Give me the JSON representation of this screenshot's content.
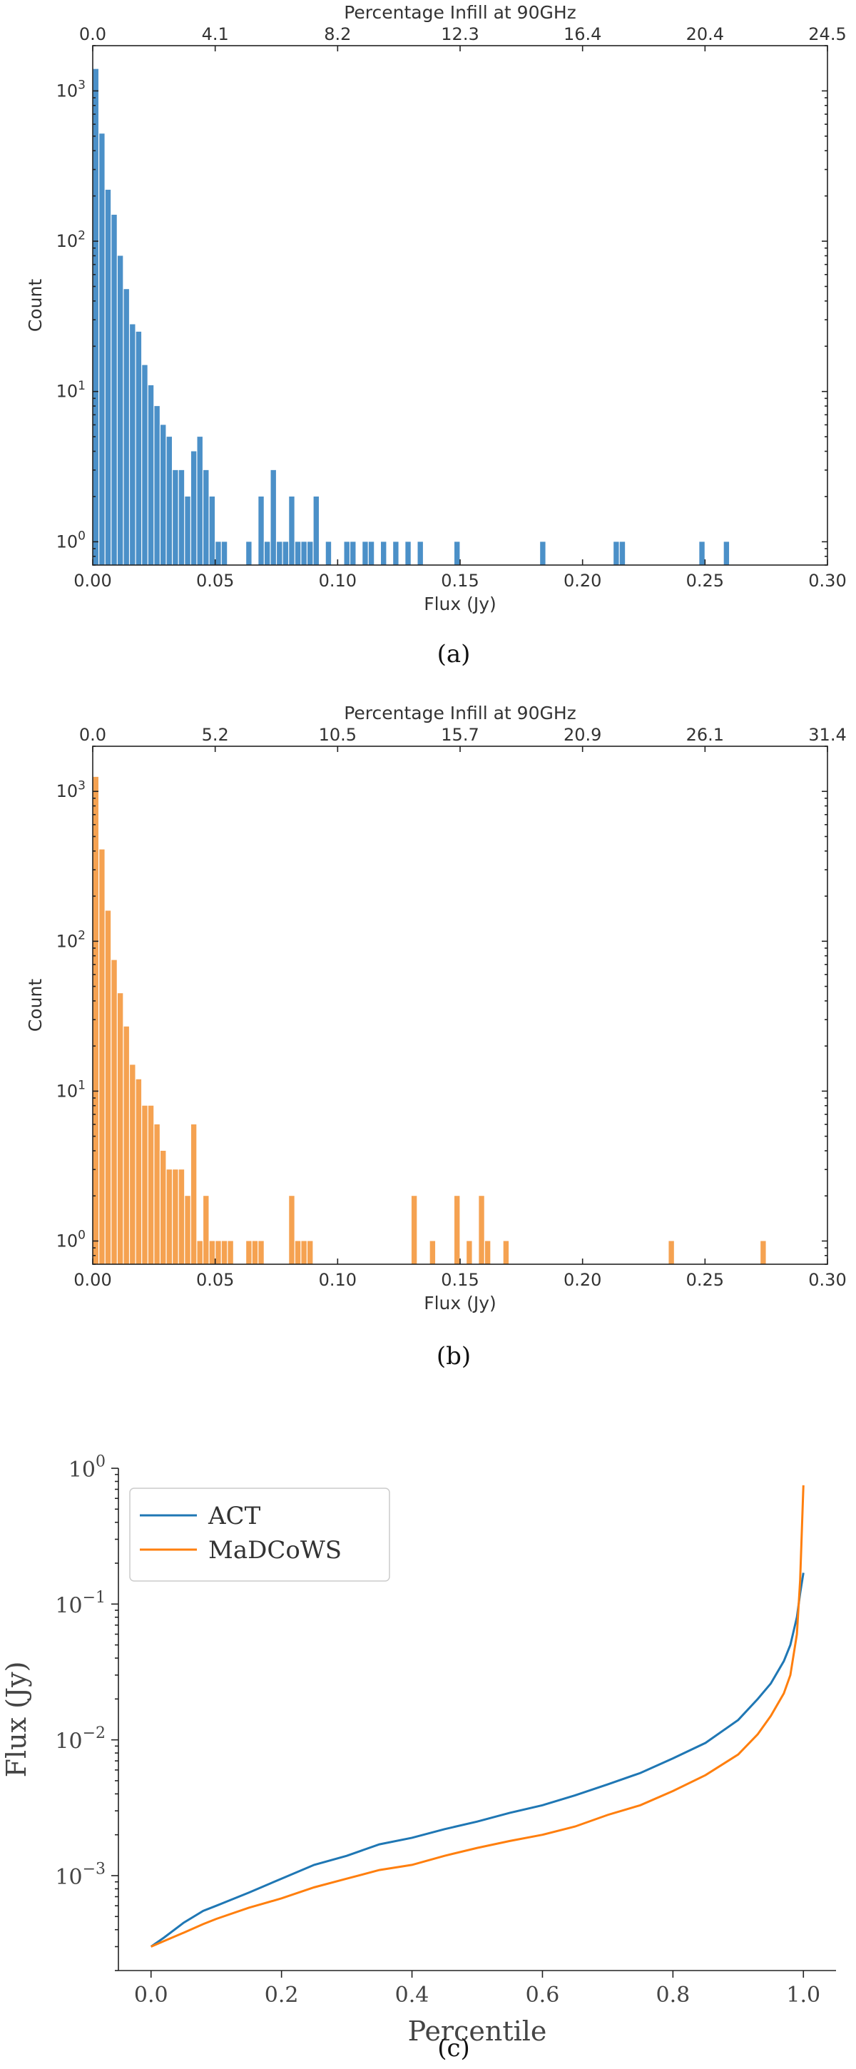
{
  "chart_data": [
    {
      "id": "a",
      "type": "bar",
      "caption": "(a)",
      "title": "",
      "xlabel": "Flux (Jy)",
      "ylabel": "Count",
      "top_xlabel": "Percentage Infill at 90GHz",
      "xlim": [
        0,
        0.3
      ],
      "ylim_log": [
        0.7,
        2000
      ],
      "yscale": "log",
      "xticks": [
        0.0,
        0.05,
        0.1,
        0.15,
        0.2,
        0.25,
        0.3
      ],
      "xtick_labels": [
        "0.00",
        "0.05",
        "0.10",
        "0.15",
        "0.20",
        "0.25",
        "0.30"
      ],
      "top_xtick_labels": [
        "0.0",
        "4.1",
        "8.2",
        "12.3",
        "16.4",
        "20.4",
        "24.5"
      ],
      "ytick_exponents": [
        "0",
        "1",
        "2",
        "3"
      ],
      "ytick_values": [
        1,
        10,
        100,
        1000
      ],
      "color": "#4b90c8",
      "bin_width": 0.0025,
      "bins_x": [
        0.0,
        0.0025,
        0.005,
        0.0075,
        0.01,
        0.0125,
        0.015,
        0.0175,
        0.02,
        0.0225,
        0.025,
        0.0275,
        0.03,
        0.0325,
        0.035,
        0.0375,
        0.04,
        0.0425,
        0.045,
        0.0475,
        0.05,
        0.0525,
        0.0625,
        0.0675,
        0.07,
        0.0725,
        0.075,
        0.0775,
        0.08,
        0.0825,
        0.085,
        0.0875,
        0.09,
        0.095,
        0.1025,
        0.105,
        0.11,
        0.1125,
        0.1175,
        0.1225,
        0.1275,
        0.1325,
        0.1475,
        0.1825,
        0.2125,
        0.215,
        0.2475,
        0.2575
      ],
      "bins_count": [
        1400,
        520,
        220,
        150,
        80,
        48,
        28,
        25,
        15,
        11,
        8,
        6,
        5,
        3,
        3,
        2,
        4,
        5,
        3,
        2,
        1,
        1,
        1,
        2,
        1,
        3,
        1,
        1,
        2,
        1,
        1,
        1,
        2,
        1,
        1,
        1,
        1,
        1,
        1,
        1,
        1,
        1,
        1,
        1,
        1,
        1,
        1,
        1
      ]
    },
    {
      "id": "b",
      "type": "bar",
      "caption": "(b)",
      "title": "",
      "xlabel": "Flux (Jy)",
      "ylabel": "Count",
      "top_xlabel": "Percentage Infill at 90GHz",
      "xlim": [
        0,
        0.3
      ],
      "ylim_log": [
        0.7,
        2000
      ],
      "yscale": "log",
      "xticks": [
        0.0,
        0.05,
        0.1,
        0.15,
        0.2,
        0.25,
        0.3
      ],
      "xtick_labels": [
        "0.00",
        "0.05",
        "0.10",
        "0.15",
        "0.20",
        "0.25",
        "0.30"
      ],
      "top_xtick_labels": [
        "0.0",
        "5.2",
        "10.5",
        "15.7",
        "20.9",
        "26.1",
        "31.4"
      ],
      "ytick_exponents": [
        "0",
        "1",
        "2",
        "3"
      ],
      "ytick_values": [
        1,
        10,
        100,
        1000
      ],
      "color": "#f5a251",
      "bin_width": 0.0025,
      "bins_x": [
        0.0,
        0.0025,
        0.005,
        0.0075,
        0.01,
        0.0125,
        0.015,
        0.0175,
        0.02,
        0.0225,
        0.025,
        0.0275,
        0.03,
        0.0325,
        0.035,
        0.0375,
        0.04,
        0.0425,
        0.045,
        0.0475,
        0.05,
        0.0525,
        0.055,
        0.0625,
        0.065,
        0.0675,
        0.08,
        0.0825,
        0.085,
        0.0875,
        0.13,
        0.1375,
        0.1475,
        0.1525,
        0.1575,
        0.16,
        0.1675,
        0.235,
        0.2725
      ],
      "bins_count": [
        1250,
        410,
        160,
        75,
        45,
        27,
        15,
        12,
        8,
        8,
        6,
        4,
        3,
        3,
        3,
        2,
        6,
        1,
        2,
        1,
        1,
        1,
        1,
        1,
        1,
        1,
        2,
        1,
        1,
        1,
        2,
        1,
        2,
        1,
        2,
        1,
        1,
        1,
        1
      ]
    },
    {
      "id": "c",
      "type": "line",
      "caption": "(c)",
      "title": "",
      "xlabel": "Percentile",
      "ylabel": "Flux (Jy)",
      "xlim": [
        -0.05,
        1.05
      ],
      "ylim_log": [
        0.0002,
        1.0
      ],
      "yscale": "log",
      "xticks": [
        0.0,
        0.2,
        0.4,
        0.6,
        0.8,
        1.0
      ],
      "xtick_labels": [
        "0.0",
        "0.2",
        "0.4",
        "0.6",
        "0.8",
        "1.0"
      ],
      "ytick_exponents": [
        "0",
        "−1",
        "−2",
        "−3"
      ],
      "ytick_values": [
        1,
        0.1,
        0.01,
        0.001
      ],
      "legend_position": "upper-left",
      "series": [
        {
          "name": "ACT",
          "color": "#1f77b4",
          "x": [
            0.0,
            0.02,
            0.05,
            0.08,
            0.1,
            0.15,
            0.2,
            0.25,
            0.3,
            0.35,
            0.4,
            0.45,
            0.5,
            0.55,
            0.6,
            0.65,
            0.7,
            0.75,
            0.8,
            0.85,
            0.9,
            0.93,
            0.95,
            0.97,
            0.98,
            0.99,
            0.995,
            1.0
          ],
          "y": [
            0.0003,
            0.00035,
            0.00045,
            0.00055,
            0.0006,
            0.00075,
            0.00095,
            0.0012,
            0.0014,
            0.0017,
            0.0019,
            0.0022,
            0.0025,
            0.0029,
            0.0033,
            0.0039,
            0.0047,
            0.0057,
            0.0073,
            0.0095,
            0.014,
            0.02,
            0.026,
            0.038,
            0.05,
            0.08,
            0.12,
            0.17
          ]
        },
        {
          "name": "MaDCoWS",
          "color": "#ff7f0e",
          "x": [
            0.0,
            0.02,
            0.05,
            0.08,
            0.1,
            0.15,
            0.2,
            0.25,
            0.3,
            0.35,
            0.4,
            0.45,
            0.5,
            0.55,
            0.6,
            0.65,
            0.7,
            0.75,
            0.8,
            0.85,
            0.9,
            0.93,
            0.95,
            0.97,
            0.98,
            0.99,
            0.995,
            1.0
          ],
          "y": [
            0.0003,
            0.00033,
            0.00038,
            0.00044,
            0.00048,
            0.00058,
            0.00068,
            0.00082,
            0.00095,
            0.0011,
            0.0012,
            0.0014,
            0.0016,
            0.0018,
            0.002,
            0.0023,
            0.0028,
            0.0033,
            0.0042,
            0.0055,
            0.0078,
            0.011,
            0.015,
            0.022,
            0.03,
            0.06,
            0.15,
            0.75
          ]
        }
      ]
    }
  ]
}
